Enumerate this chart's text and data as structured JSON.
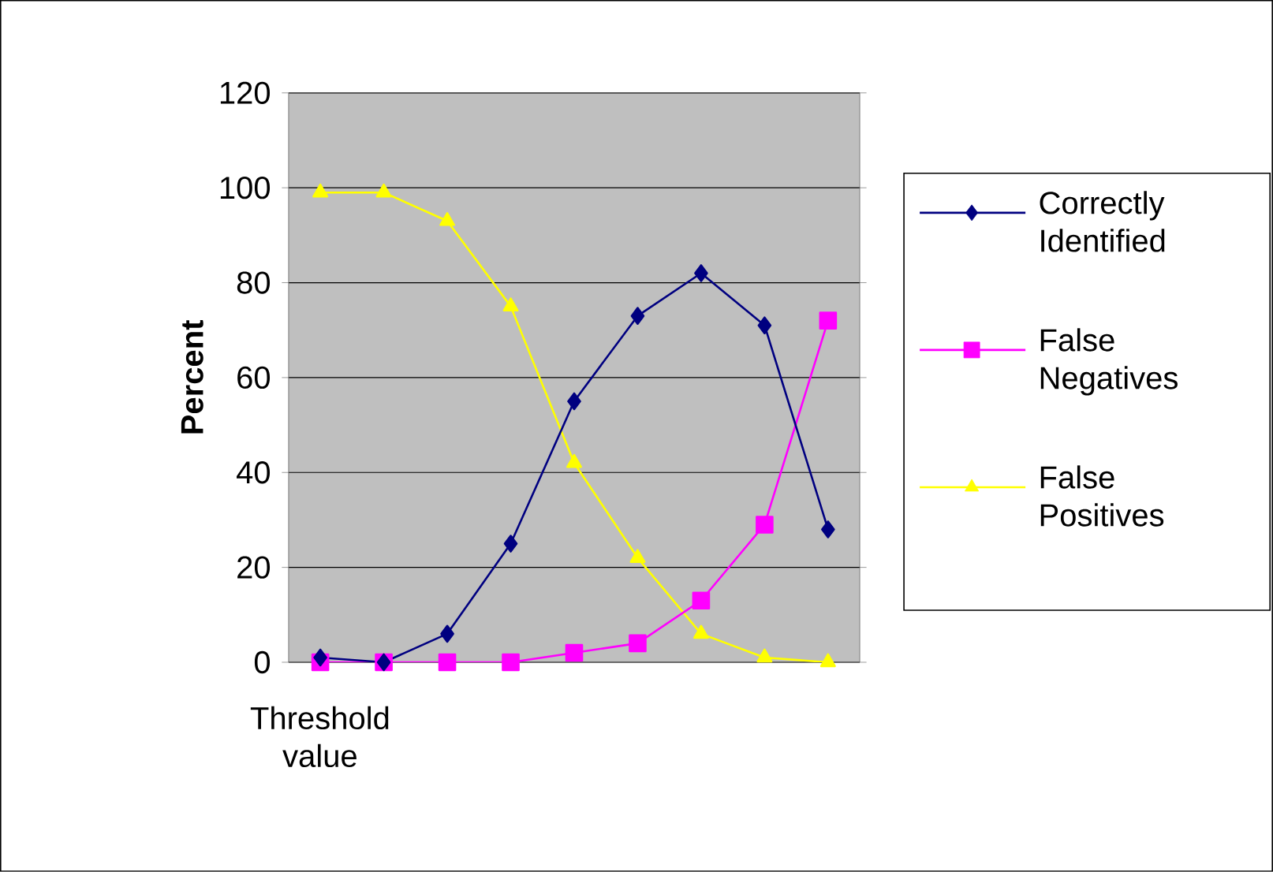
{
  "chart_data": {
    "type": "line",
    "xlabel": "Threshold value",
    "ylabel": "Percent",
    "categories": [
      null,
      null,
      null,
      null,
      null,
      null,
      null,
      null,
      null
    ],
    "series": [
      {
        "name": "Correctly Identified",
        "color": "#000080",
        "marker": "diamond",
        "values": [
          1,
          0,
          6,
          25,
          55,
          73,
          82,
          71,
          28
        ]
      },
      {
        "name": "False Negatives",
        "color": "#ff00ff",
        "marker": "square",
        "values": [
          0,
          0,
          0,
          0,
          2,
          4,
          13,
          29,
          72
        ]
      },
      {
        "name": "False Positives",
        "color": "#ffff00",
        "marker": "triangle",
        "values": [
          99,
          99,
          93,
          75,
          42,
          22,
          6,
          1,
          0
        ]
      }
    ],
    "ylim": [
      0,
      120
    ],
    "yticks": [
      0,
      20,
      40,
      60,
      80,
      100,
      120
    ],
    "grid": "y",
    "legend": "right",
    "tick_labels": "y"
  }
}
